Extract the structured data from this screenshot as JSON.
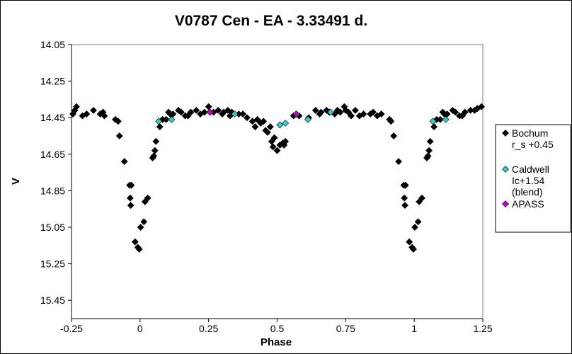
{
  "chart_data": {
    "type": "scatter",
    "title": "V0787 Cen - EA - 3.33491 d.",
    "xlabel": "Phase",
    "ylabel": "V",
    "xlim": [
      -0.25,
      1.25
    ],
    "ylim": [
      14.05,
      15.55
    ],
    "y_inverted": true,
    "grid": false,
    "legend_position": "right",
    "x_ticks": [
      "-0.25",
      "0",
      "0.25",
      "0.5",
      "0.75",
      "1",
      "1.25"
    ],
    "x_tick_values": [
      -0.25,
      0,
      0.25,
      0.5,
      0.75,
      1,
      1.25
    ],
    "y_ticks": [
      "14.05",
      "14.25",
      "14.45",
      "14.65",
      "14.85",
      "15.05",
      "15.25",
      "15.45"
    ],
    "y_tick_values": [
      14.05,
      14.25,
      14.45,
      14.65,
      14.85,
      15.05,
      15.25,
      15.45
    ],
    "series": [
      {
        "name": "Bochum r_s +0.45",
        "legend_lines": [
          "Bochum",
          "r_s +0.45"
        ],
        "marker": "diamond",
        "color": "#000000",
        "points": [
          [
            -0.245,
            14.43
          ],
          [
            -0.238,
            14.41
          ],
          [
            -0.232,
            14.39
          ],
          [
            -0.21,
            14.44
          ],
          [
            -0.195,
            14.43
          ],
          [
            -0.17,
            14.41
          ],
          [
            -0.145,
            14.43
          ],
          [
            -0.135,
            14.42
          ],
          [
            -0.13,
            14.44
          ],
          [
            -0.09,
            14.46
          ],
          [
            -0.08,
            14.47
          ],
          [
            -0.075,
            14.55
          ],
          [
            -0.057,
            14.69
          ],
          [
            -0.038,
            14.82
          ],
          [
            -0.032,
            14.82
          ],
          [
            -0.036,
            14.89
          ],
          [
            -0.034,
            14.93
          ],
          [
            -0.018,
            15.13
          ],
          [
            -0.008,
            15.16
          ],
          [
            -0.003,
            15.17
          ],
          [
            0.002,
            15.05
          ],
          [
            0.014,
            15.02
          ],
          [
            0.018,
            14.91
          ],
          [
            0.028,
            14.89
          ],
          [
            0.046,
            14.67
          ],
          [
            0.05,
            14.66
          ],
          [
            0.054,
            14.63
          ],
          [
            0.058,
            14.58
          ],
          [
            0.072,
            14.5
          ],
          [
            0.082,
            14.46
          ],
          [
            0.095,
            14.46
          ],
          [
            0.104,
            14.42
          ],
          [
            0.11,
            14.43
          ],
          [
            0.12,
            14.43
          ],
          [
            0.14,
            14.41
          ],
          [
            0.15,
            14.42
          ],
          [
            0.165,
            14.44
          ],
          [
            0.175,
            14.44
          ],
          [
            0.185,
            14.42
          ],
          [
            0.205,
            14.41
          ],
          [
            0.22,
            14.43
          ],
          [
            0.235,
            14.42
          ],
          [
            0.25,
            14.39
          ],
          [
            0.268,
            14.42
          ],
          [
            0.285,
            14.41
          ],
          [
            0.3,
            14.43
          ],
          [
            0.305,
            14.42
          ],
          [
            0.32,
            14.41
          ],
          [
            0.328,
            14.44
          ],
          [
            0.335,
            14.42
          ],
          [
            0.36,
            14.43
          ],
          [
            0.375,
            14.43
          ],
          [
            0.39,
            14.45
          ],
          [
            0.41,
            14.47
          ],
          [
            0.42,
            14.5
          ],
          [
            0.428,
            14.46
          ],
          [
            0.44,
            14.48
          ],
          [
            0.45,
            14.47
          ],
          [
            0.458,
            14.52
          ],
          [
            0.465,
            14.53
          ],
          [
            0.475,
            14.5
          ],
          [
            0.48,
            14.58
          ],
          [
            0.485,
            14.61
          ],
          [
            0.49,
            14.56
          ],
          [
            0.5,
            14.63
          ],
          [
            0.51,
            14.6
          ],
          [
            0.52,
            14.59
          ],
          [
            0.525,
            14.6
          ],
          [
            0.53,
            14.58
          ],
          [
            0.56,
            14.44
          ],
          [
            0.58,
            14.44
          ],
          [
            0.615,
            14.45
          ],
          [
            0.64,
            14.41
          ],
          [
            0.655,
            14.43
          ],
          [
            0.66,
            14.42
          ],
          [
            0.68,
            14.41
          ],
          [
            0.69,
            14.42
          ],
          [
            0.71,
            14.43
          ],
          [
            0.72,
            14.41
          ],
          [
            0.73,
            14.42
          ],
          [
            0.745,
            14.39
          ],
          [
            0.75,
            14.41
          ],
          [
            0.76,
            14.42
          ],
          [
            0.77,
            14.44
          ],
          [
            0.785,
            14.41
          ],
          [
            0.8,
            14.44
          ],
          [
            0.815,
            14.43
          ],
          [
            0.84,
            14.43
          ],
          [
            0.85,
            14.42
          ],
          [
            0.865,
            14.44
          ],
          [
            0.88,
            14.43
          ],
          [
            0.91,
            14.46
          ],
          [
            0.915,
            14.47
          ],
          [
            0.925,
            14.55
          ],
          [
            0.943,
            14.69
          ],
          [
            0.962,
            14.82
          ],
          [
            0.968,
            14.82
          ],
          [
            0.964,
            14.89
          ],
          [
            0.966,
            14.93
          ],
          [
            0.982,
            15.13
          ],
          [
            0.992,
            15.16
          ],
          [
            0.997,
            15.17
          ],
          [
            1.002,
            15.05
          ],
          [
            1.014,
            15.02
          ],
          [
            1.018,
            14.91
          ],
          [
            1.028,
            14.89
          ],
          [
            1.046,
            14.67
          ],
          [
            1.05,
            14.66
          ],
          [
            1.054,
            14.63
          ],
          [
            1.058,
            14.58
          ],
          [
            1.072,
            14.5
          ],
          [
            1.082,
            14.46
          ],
          [
            1.095,
            14.46
          ],
          [
            1.104,
            14.42
          ],
          [
            1.11,
            14.43
          ],
          [
            1.12,
            14.43
          ],
          [
            1.14,
            14.41
          ],
          [
            1.15,
            14.42
          ],
          [
            1.165,
            14.44
          ],
          [
            1.175,
            14.44
          ],
          [
            1.185,
            14.42
          ],
          [
            1.205,
            14.41
          ],
          [
            1.22,
            14.41
          ],
          [
            1.23,
            14.4
          ],
          [
            1.245,
            14.39
          ]
        ]
      },
      {
        "name": "Caldwell Ic+1.54 (blend)",
        "legend_lines": [
          "Caldwell",
          "Ic+1.54",
          "(blend)"
        ],
        "marker": "diamond",
        "color": "#33cccc",
        "points": [
          [
            0.068,
            14.47
          ],
          [
            0.115,
            14.46
          ],
          [
            0.345,
            14.43
          ],
          [
            0.51,
            14.49
          ],
          [
            0.53,
            14.48
          ],
          [
            0.612,
            14.46
          ],
          [
            0.695,
            14.42
          ],
          [
            1.068,
            14.47
          ],
          [
            1.115,
            14.46
          ]
        ]
      },
      {
        "name": "APASS",
        "legend_lines": [
          "APASS"
        ],
        "marker": "diamond",
        "color": "#cc00cc",
        "points": [
          [
            0.255,
            14.42
          ],
          [
            0.57,
            14.43
          ]
        ]
      }
    ]
  }
}
